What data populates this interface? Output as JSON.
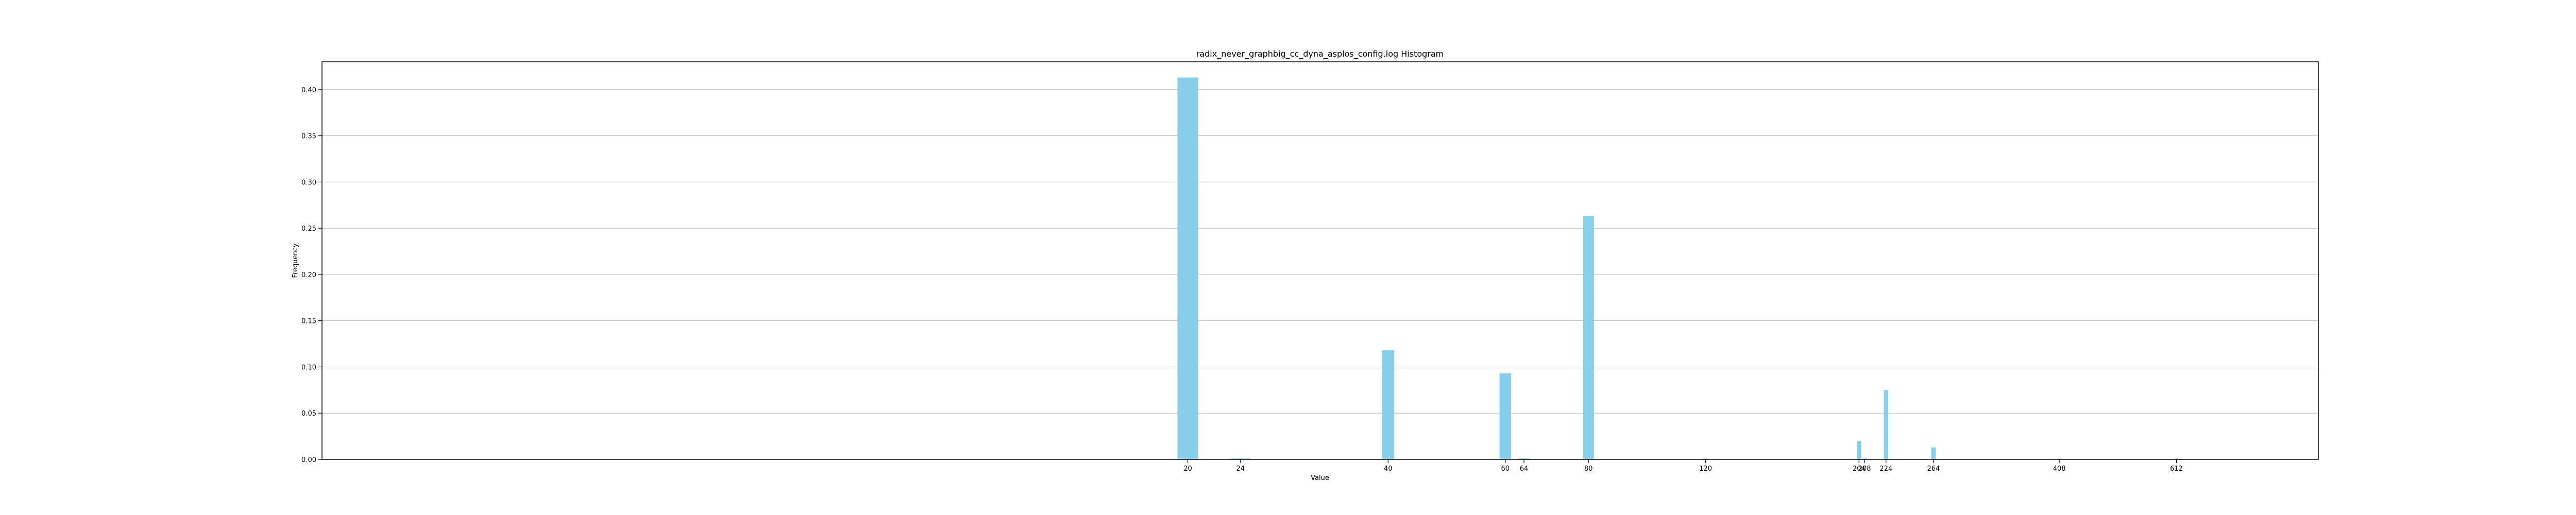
{
  "chart_data": {
    "type": "bar",
    "title": "radix_never_graphbig_cc_dyna_asplos_config.log Histogram",
    "xlabel": "Value",
    "ylabel": "Frequency",
    "xlim": [
      1.0,
      1000.0
    ],
    "ylim": [
      0,
      0.43
    ],
    "grid": "y",
    "bar_color": "#87ceeb",
    "xticks": [
      20,
      24,
      40,
      60,
      64,
      80,
      120,
      204,
      208,
      224,
      264,
      408,
      612
    ],
    "xtick_labels": [
      "20",
      "24",
      "40",
      "60",
      "64",
      "80",
      "120",
      "204",
      "208",
      "224",
      "264",
      "408",
      "612"
    ],
    "yticks": [
      0.0,
      0.05,
      0.1,
      0.15,
      0.2,
      0.25,
      0.3,
      0.35,
      0.4
    ],
    "ytick_labels": [
      "0.00",
      "0.05",
      "0.10",
      "0.15",
      "0.20",
      "0.25",
      "0.30",
      "0.35",
      "0.40"
    ],
    "bars": [
      {
        "x": 20,
        "value": 0.413
      },
      {
        "x": 24,
        "value": 0.001
      },
      {
        "x": 40,
        "value": 0.118
      },
      {
        "x": 60,
        "value": 0.093
      },
      {
        "x": 64,
        "value": 0.001
      },
      {
        "x": 80,
        "value": 0.263
      },
      {
        "x": 120,
        "value": 0.001
      },
      {
        "x": 204,
        "value": 0.02
      },
      {
        "x": 208,
        "value": 0.001
      },
      {
        "x": 224,
        "value": 0.075
      },
      {
        "x": 264,
        "value": 0.013
      },
      {
        "x": 408,
        "value": 0.001
      },
      {
        "x": 612,
        "value": 0.001
      }
    ]
  }
}
